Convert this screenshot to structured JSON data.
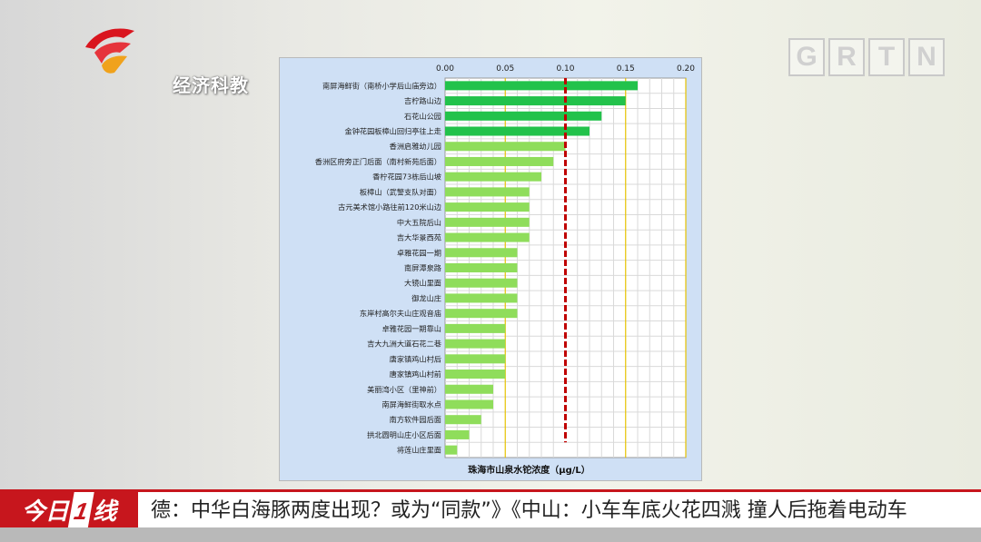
{
  "channel_logo": {
    "name": "经济科教"
  },
  "corner_logo": {
    "letters": [
      "G",
      "R",
      "T",
      "N"
    ]
  },
  "chart_data": {
    "type": "bar",
    "orientation": "horizontal",
    "xlabel": "珠海市山泉水铊浓度（μg/L）",
    "xlim": [
      0,
      0.2
    ],
    "xticks": [
      "0.00",
      "0.05",
      "0.10",
      "0.15",
      "0.20"
    ],
    "threshold": 0.1,
    "categories": [
      "南屏海鲜街（南桥小学后山庙旁边）",
      "吉柠路山边",
      "石花山公园",
      "金钟花园板樟山回归亭往上走",
      "香洲启雅幼儿园",
      "香洲区府旁正门后面（南村新苑后面）",
      "香柠花园73栋后山坡",
      "板樟山（武警支队对面）",
      "古元美术馆小路往前120米山边",
      "中大五院后山",
      "吉大华景西苑",
      "卓雅花园一期",
      "南屏潭泉路",
      "大镜山里面",
      "御龙山庄",
      "东岸村高尔夫山庄观音庙",
      "卓雅花园一期靠山",
      "吉大九洲大道石花二巷",
      "唐家镇鸡山村后",
      "唐家镇鸡山村前",
      "美丽湾小区（里神前）",
      "南屏海鲜街取水点",
      "南方软件园后面",
      "拱北圆明山庄小区后面",
      "将莲山庄里面"
    ],
    "values": [
      0.16,
      0.15,
      0.13,
      0.12,
      0.1,
      0.09,
      0.08,
      0.07,
      0.07,
      0.07,
      0.07,
      0.06,
      0.06,
      0.06,
      0.06,
      0.06,
      0.05,
      0.05,
      0.05,
      0.05,
      0.04,
      0.04,
      0.03,
      0.02,
      0.01
    ],
    "colors": {
      "above": "#22c24b",
      "below": "#8fdd5b",
      "threshold": "#c00000",
      "reference": "#e6c200"
    }
  },
  "ticker": {
    "brand_a": "今日",
    "brand_num": "1",
    "brand_b": "线",
    "text": "德：中华白海豚两度出现？或为“同款”》《中山：小车车底火花四溅  撞人后拖着电动车"
  }
}
